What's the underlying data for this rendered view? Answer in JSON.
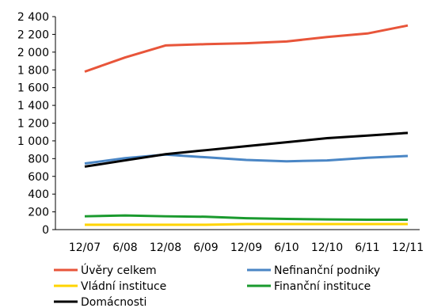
{
  "chart_data": {
    "type": "line",
    "categories": [
      "12/07",
      "6/08",
      "12/08",
      "6/09",
      "12/09",
      "6/10",
      "12/10",
      "6/11",
      "12/11"
    ],
    "ylim": [
      0,
      2400
    ],
    "y_ticks": [
      "0",
      "200",
      "400",
      "600",
      "800",
      "1 000",
      "1 200",
      "1 400",
      "1 600",
      "1 800",
      "2 000",
      "2 200",
      "2 400"
    ],
    "grid": false,
    "legend_position": "bottom",
    "series": [
      {
        "name": "Úvěry celkem",
        "color": "#e8553a",
        "values": [
          1780,
          1940,
          2075,
          2090,
          2100,
          2120,
          2170,
          2210,
          2300
        ]
      },
      {
        "name": "Nefinanční podniky",
        "color": "#4a86c5",
        "values": [
          745,
          805,
          845,
          815,
          785,
          770,
          780,
          810,
          830
        ]
      },
      {
        "name": "Vládní instituce",
        "color": "#ffd400",
        "values": [
          55,
          55,
          55,
          55,
          62,
          62,
          62,
          62,
          62
        ]
      },
      {
        "name": "Finanční instituce",
        "color": "#1a9a2e",
        "values": [
          150,
          160,
          150,
          145,
          128,
          120,
          115,
          112,
          112
        ]
      },
      {
        "name": "Domácnosti",
        "color": "#000000",
        "values": [
          710,
          780,
          850,
          895,
          940,
          985,
          1030,
          1060,
          1090
        ]
      }
    ]
  }
}
